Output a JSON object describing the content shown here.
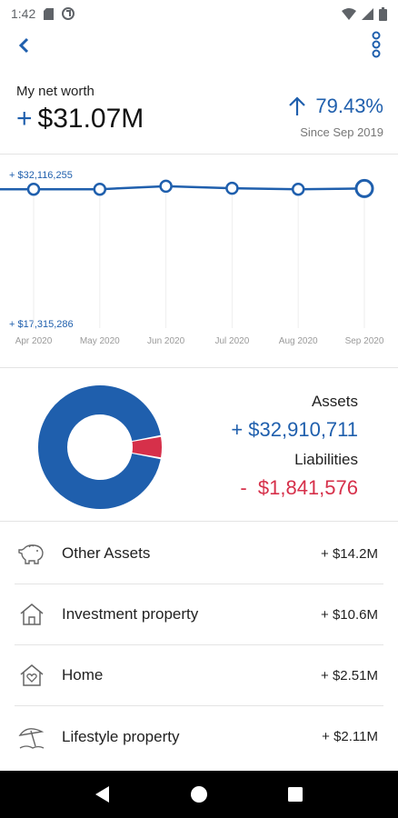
{
  "status_bar": {
    "time": "1:42"
  },
  "header": {
    "back": "back-arrow",
    "menu": "more-vert"
  },
  "net_worth": {
    "label": "My net worth",
    "sign": "+",
    "value": "$31.07M",
    "change": "79.43%",
    "since": "Since Sep 2019"
  },
  "chart_data": {
    "type": "line",
    "x": [
      "Apr 2020",
      "May 2020",
      "Jun 2020",
      "Jul 2020",
      "Aug 2020",
      "Sep 2020"
    ],
    "series": [
      {
        "values": [
          31.0,
          31.0,
          31.3,
          31.1,
          31.0,
          31.07
        ]
      }
    ],
    "y_max_label": "+ $32,116,255",
    "y_min_label": "+ $17,315,286",
    "ylim": [
      17.3,
      32.1
    ],
    "color": "#1f5fad"
  },
  "summary": {
    "assets_label": "Assets",
    "assets_value": "+ $32,910,711",
    "liabilities_label": "Liabilities",
    "liabilities_value": "-  $1,841,576",
    "donut": {
      "assets": 32910711,
      "liabilities": 1841576,
      "asset_color": "#1f5fad",
      "liability_color": "#d6304a"
    }
  },
  "categories": [
    {
      "icon": "piggy-bank-icon",
      "label": "Other Assets",
      "value": "+ $14.2M"
    },
    {
      "icon": "house-icon",
      "label": "Investment property",
      "value": "+ $10.6M"
    },
    {
      "icon": "home-heart-icon",
      "label": "Home",
      "value": "+ $2.51M"
    },
    {
      "icon": "beach-umbrella-icon",
      "label": "Lifestyle property",
      "value": "+ $2.11M"
    }
  ]
}
